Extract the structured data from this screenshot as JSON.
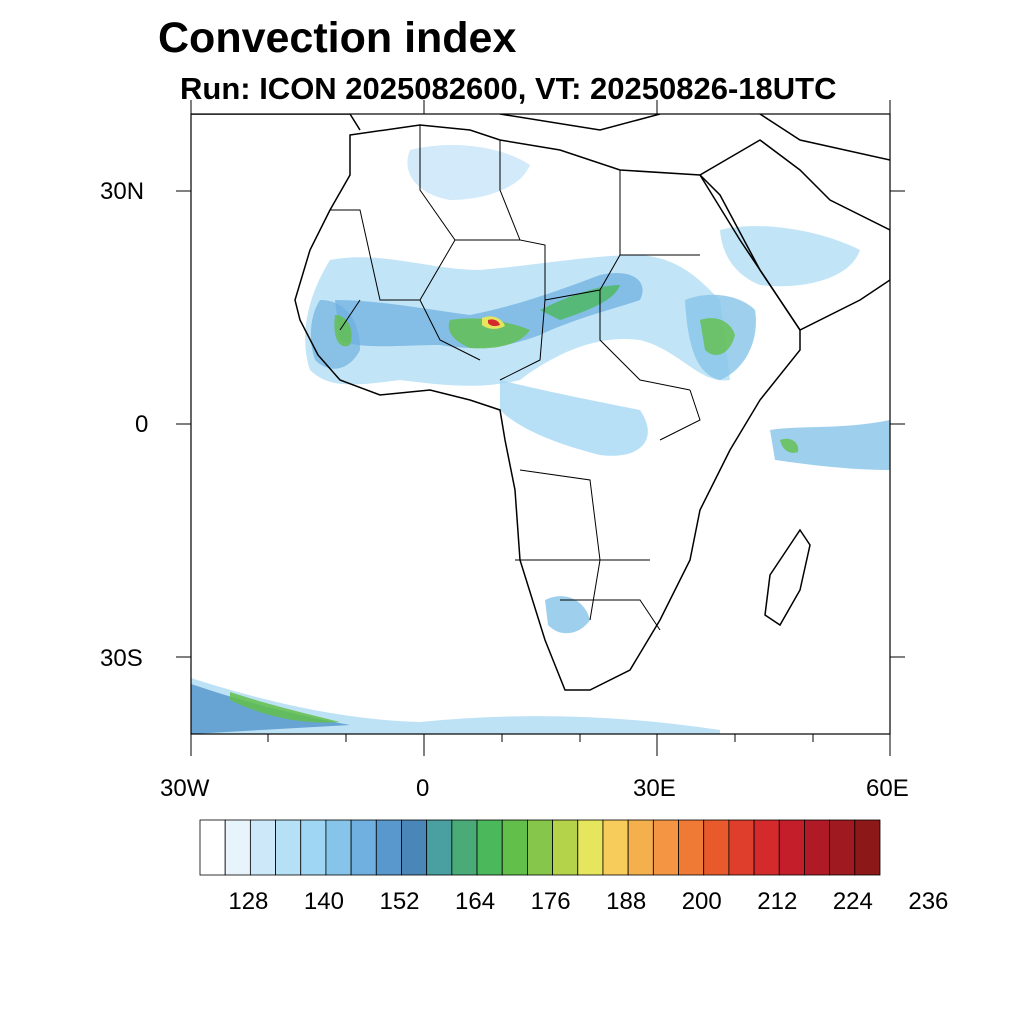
{
  "header": {
    "title": "Convection index",
    "subtitle": "Run: ICON 2025082600,  VT: 20250826-18UTC"
  },
  "axes": {
    "lat_labels": [
      "30N",
      "0",
      "30S"
    ],
    "lon_labels": [
      "30W",
      "0",
      "30E",
      "60E"
    ],
    "lat_ticks_deg": [
      30,
      0,
      -30
    ],
    "lon_ticks_deg": [
      -30,
      0,
      30,
      60
    ],
    "lon_range": [
      -30,
      60
    ],
    "lat_range": [
      -40,
      40
    ]
  },
  "colorbar": {
    "colors": [
      "#ffffff",
      "#e8f4fc",
      "#cde8f8",
      "#b6e0f6",
      "#9fd6f4",
      "#86c4ea",
      "#6fb0e0",
      "#5898cc",
      "#4a87b8",
      "#4aa0a0",
      "#4aaa78",
      "#4cb85c",
      "#62bf4a",
      "#86c64a",
      "#b5d34a",
      "#e5e55e",
      "#f7cc5a",
      "#f5b04e",
      "#f39542",
      "#ef7a36",
      "#e85a2c",
      "#e03e2c",
      "#d42a2c",
      "#c41e2a",
      "#b01a26",
      "#9e1a20",
      "#8c1818"
    ],
    "tick_labels": [
      "128",
      "140",
      "152",
      "164",
      "176",
      "188",
      "200",
      "212",
      "224",
      "236"
    ]
  }
}
